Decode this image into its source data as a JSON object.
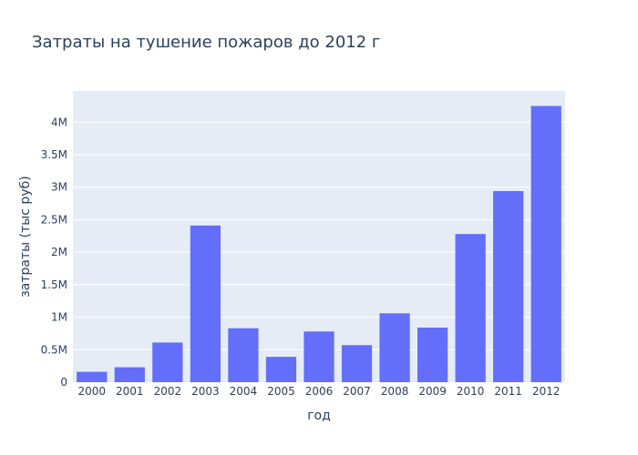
{
  "chart_data": {
    "type": "bar",
    "title": "Затраты на тушение пожаров до 2012 г",
    "xlabel": "год",
    "ylabel": "затраты (тыс руб)",
    "categories": [
      "2000",
      "2001",
      "2002",
      "2003",
      "2004",
      "2005",
      "2006",
      "2007",
      "2008",
      "2009",
      "2010",
      "2011",
      "2012"
    ],
    "values": [
      160000,
      230000,
      610000,
      2410000,
      830000,
      390000,
      780000,
      570000,
      1060000,
      840000,
      2280000,
      2940000,
      4250000
    ],
    "ylim": [
      0,
      4480000
    ],
    "yticks": [
      0,
      500000,
      1000000,
      1500000,
      2000000,
      2500000,
      3000000,
      3500000,
      4000000
    ],
    "ytick_labels": [
      "0",
      "0.5M",
      "1M",
      "1.5M",
      "2M",
      "2.5M",
      "3M",
      "3.5M",
      "4M"
    ],
    "grid": true,
    "colors": {
      "bar": "#636efa",
      "plot_background": "#e5ecf6",
      "grid": "#ffffff",
      "text": "#2a3f5f"
    }
  }
}
